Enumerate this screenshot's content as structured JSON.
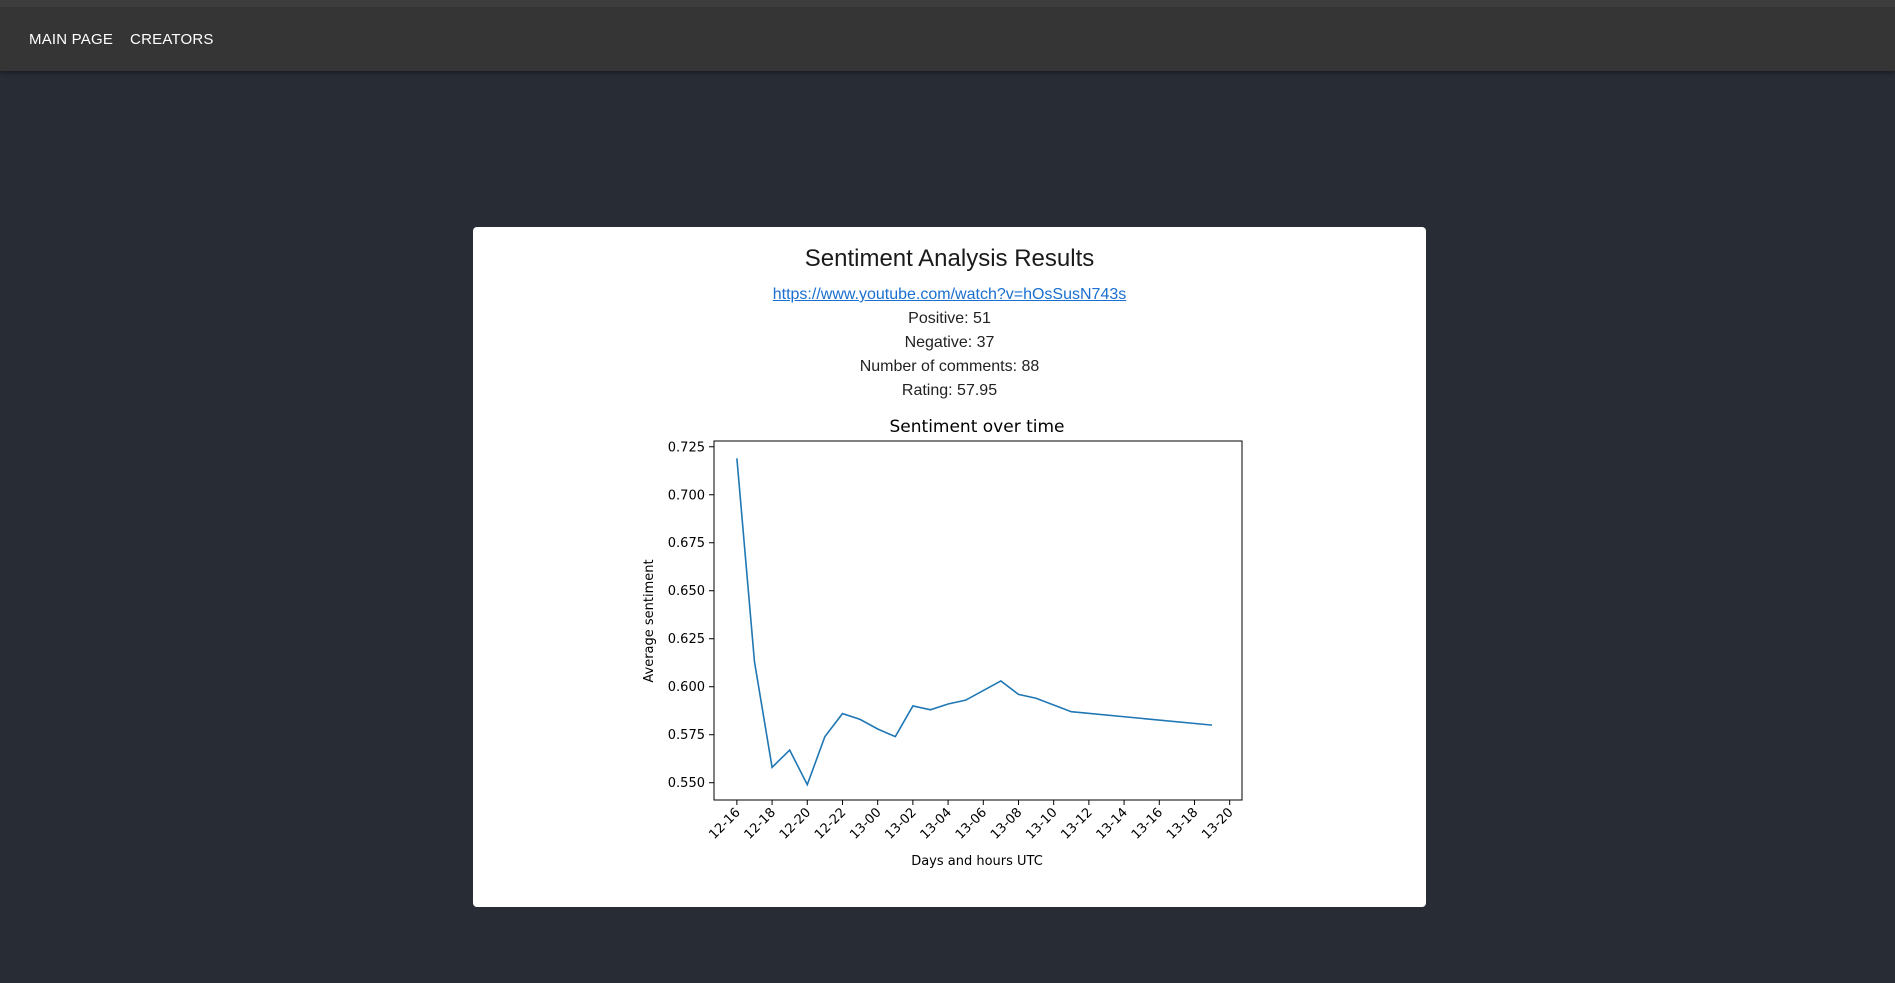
{
  "nav": {
    "items": [
      {
        "label": "MAIN PAGE"
      },
      {
        "label": "CREATORS"
      }
    ]
  },
  "card": {
    "title": "Sentiment Analysis Results",
    "url": "https://www.youtube.com/watch?v=hOsSusN743s",
    "positive": "Positive: 51",
    "negative": "Negative: 37",
    "comments": "Number of comments: 88",
    "rating": "Rating: 57.95"
  },
  "chart_data": {
    "type": "line",
    "title": "Sentiment over time",
    "xlabel": "Days and hours UTC",
    "ylabel": "Average sentiment",
    "x_ticks": [
      "12-16",
      "12-18",
      "12-20",
      "12-22",
      "13-00",
      "13-02",
      "13-04",
      "13-06",
      "13-08",
      "13-10",
      "13-12",
      "13-14",
      "13-16",
      "13-18",
      "13-20"
    ],
    "y_ticks": [
      "0.550",
      "0.575",
      "0.600",
      "0.625",
      "0.650",
      "0.675",
      "0.700",
      "0.725"
    ],
    "xlim_hours": [
      14.7,
      44.7
    ],
    "ylim": [
      0.541,
      0.728
    ],
    "series": [
      {
        "color": "#1f77b4",
        "x_hours": [
          16,
          17,
          18,
          19,
          20,
          21,
          22,
          23,
          24,
          25,
          26,
          27,
          28,
          29,
          31,
          32,
          33,
          35,
          43
        ],
        "values": [
          0.719,
          0.613,
          0.558,
          0.567,
          0.549,
          0.574,
          0.586,
          0.583,
          0.578,
          0.574,
          0.59,
          0.588,
          0.591,
          0.593,
          0.603,
          0.596,
          0.594,
          0.587,
          0.58
        ]
      }
    ],
    "grid": false
  }
}
